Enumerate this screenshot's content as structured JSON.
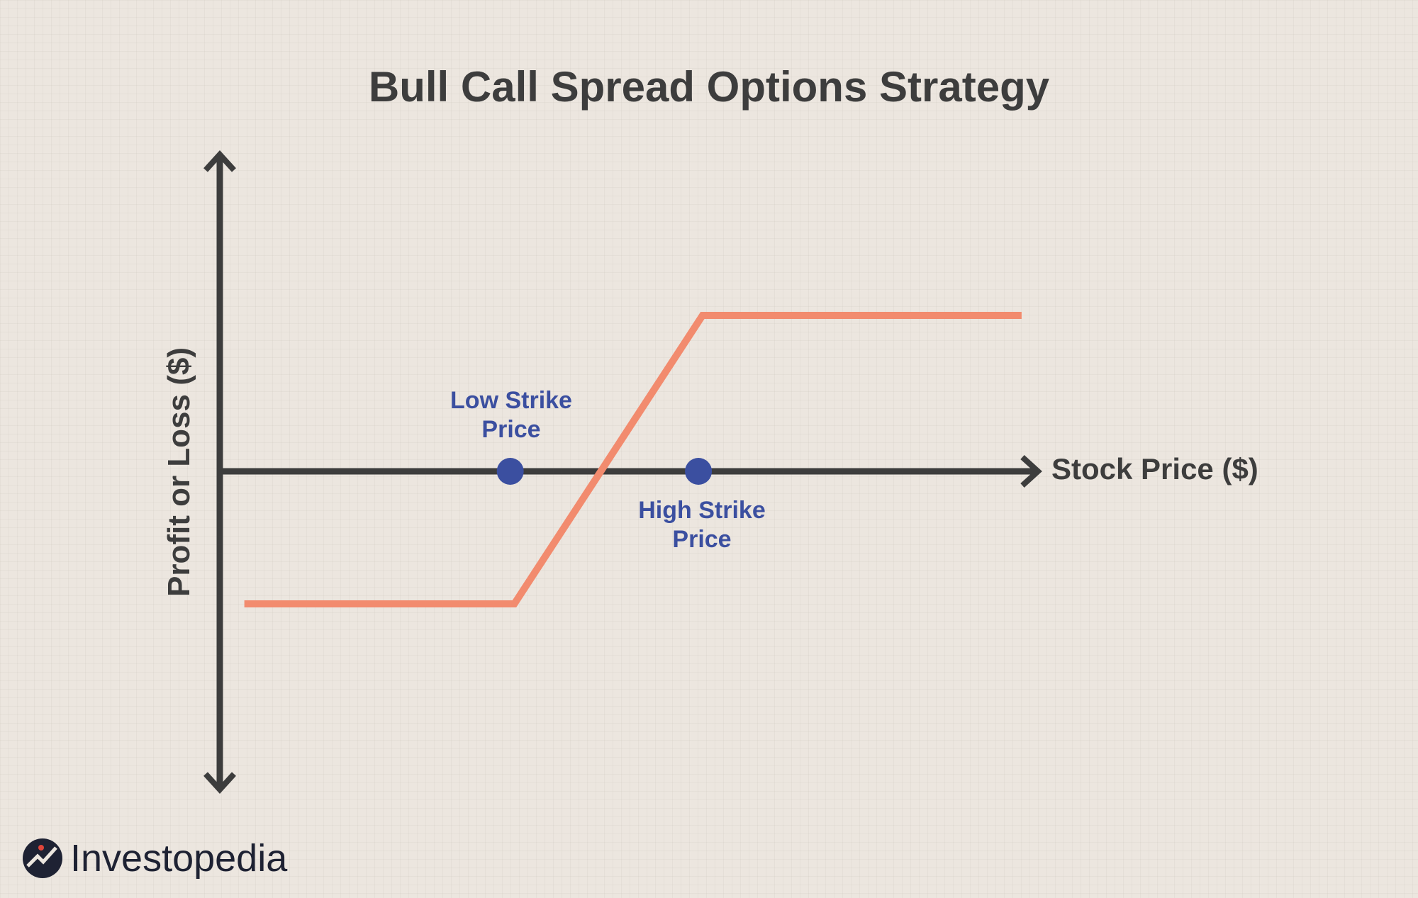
{
  "chart_data": {
    "type": "line",
    "title": "Bull Call Spread Options Strategy",
    "xlabel": "Stock Price ($)",
    "ylabel": "Profit or Loss ($)",
    "grid": false,
    "series": [
      {
        "points": [
          [
            0.03,
            -0.85
          ],
          [
            0.36,
            -0.85
          ],
          [
            0.59,
            1
          ],
          [
            0.98,
            1
          ]
        ]
      }
    ],
    "annotations": [
      {
        "label_lines": [
          "Low Strike",
          "Price"
        ],
        "x": 0.355,
        "y": 0
      },
      {
        "label_lines": [
          "High Strike",
          "Price"
        ],
        "x": 0.585,
        "y": 0
      }
    ],
    "colors": {
      "payoff": "#f28b6e",
      "axes": "#3d3d3d",
      "markers": "#3b4fa0"
    }
  },
  "brand": {
    "name": "Investopedia"
  }
}
